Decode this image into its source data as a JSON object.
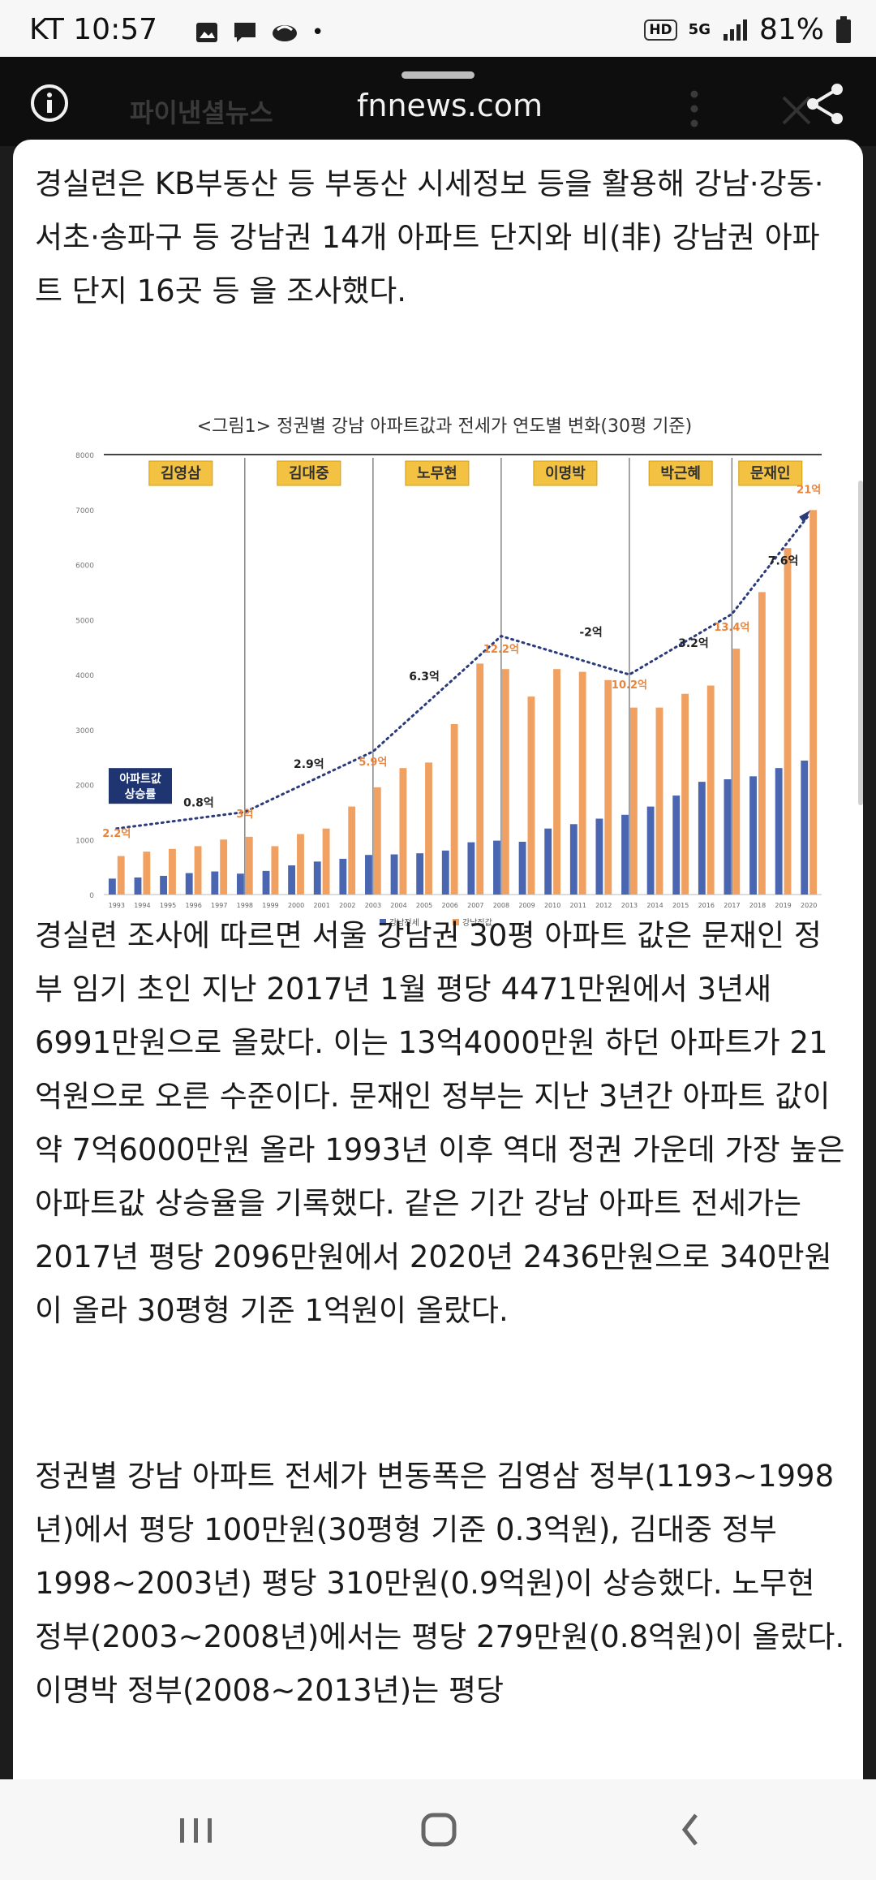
{
  "status_bar": {
    "carrier": "KT",
    "time": "10:57",
    "dot": "•",
    "hd_label": "HD",
    "network_label": "5G",
    "battery": "81%"
  },
  "browser": {
    "site_name": "파이낸셜뉴스",
    "domain": "fnnews.com"
  },
  "article": {
    "para1": "경실련은 KB부동산 등 부동산 시세정보 등을 활용해 강남·강동·서초·송파구 등 강남권 14개 아파트 단지와 비(非) 강남권 아파트 단지 16곳 등 을 조사했다.",
    "para2": "경실련 조사에 따르면 서울 강남권 30평 아파트 값은 문재인 정부 임기 초인 지난 2017년 1월 평당 4471만원에서 3년새 6991만원으로 올랐다. 이는 13억4000만원 하던 아파트가 21억원으로 오른 수준이다. 문재인 정부는 지난 3년간 아파트 값이 약 7억6000만원 올라 1993년 이후 역대 정권 가운데 가장 높은 아파트값 상승율을 기록했다. 같은 기간 강남 아파트 전세가는 2017년 평당 2096만원에서 2020년 2436만원으로 340만원이 올라 30평형 기준 1억원이 올랐다.",
    "para3": "정권별 강남 아파트 전세가 변동폭은 김영삼 정부(1193~1998년)에서 평당 100만원(30평형 기준 0.3억원), 김대중 정부1998~2003년) 평당 310만원(0.9억원)이 상승했다. 노무현 정부(2003~2008년)에서는 평당 279만원(0.8억원)이 올랐다. 이명박 정부(2008~2013년)는 평당"
  },
  "chart_data": {
    "type": "bar",
    "title": "<그림1> 정권별 강남 아파트값과 전세가 연도별 변화(30평 기준)",
    "categories": [
      "1993",
      "1994",
      "1995",
      "1996",
      "1997",
      "1998",
      "1999",
      "2000",
      "2001",
      "2002",
      "2003",
      "2004",
      "2005",
      "2006",
      "2007",
      "2008",
      "2009",
      "2010",
      "2011",
      "2012",
      "2013",
      "2014",
      "2015",
      "2016",
      "2017",
      "2018",
      "2019",
      "2020"
    ],
    "series": [
      {
        "name": "강남전세",
        "color": "#4a66b0",
        "values": [
          290,
          310,
          340,
          390,
          420,
          380,
          430,
          530,
          600,
          650,
          720,
          730,
          750,
          800,
          950,
          980,
          960,
          1200,
          1280,
          1380,
          1450,
          1600,
          1800,
          2050,
          2096,
          2150,
          2300,
          2436
        ]
      },
      {
        "name": "강남집값",
        "color": "#f0a060",
        "values": [
          700,
          780,
          830,
          880,
          1000,
          1050,
          880,
          1100,
          1200,
          1600,
          1950,
          2300,
          2400,
          3100,
          4200,
          4100,
          3600,
          4100,
          4050,
          3900,
          3400,
          3400,
          3650,
          3800,
          4471,
          5500,
          6300,
          6991
        ]
      }
    ],
    "ylim": [
      0,
      8000
    ],
    "yticks": [
      "0",
      "1000",
      "2000",
      "3000",
      "4000",
      "5000",
      "6000",
      "7000",
      "8000"
    ],
    "legend_position": "bottom",
    "eras": [
      "김영삼",
      "김대중",
      "노무현",
      "이명박",
      "박근혜",
      "문재인"
    ],
    "badge": "아파트값 상승률",
    "gain_labels": [
      "0.8억",
      "2.9억",
      "6.3억",
      "-2억",
      "3.2억",
      "7.6억"
    ],
    "price_labels": [
      "2.2억",
      "3억",
      "5.9억",
      "12.2억",
      "10.2억",
      "13.4억",
      "21억"
    ]
  },
  "colors": {
    "era_box": "#f3c242",
    "gain_line": "#2a3a7a",
    "price_label": "#e8843c",
    "badge_bg": "#1f3572"
  }
}
